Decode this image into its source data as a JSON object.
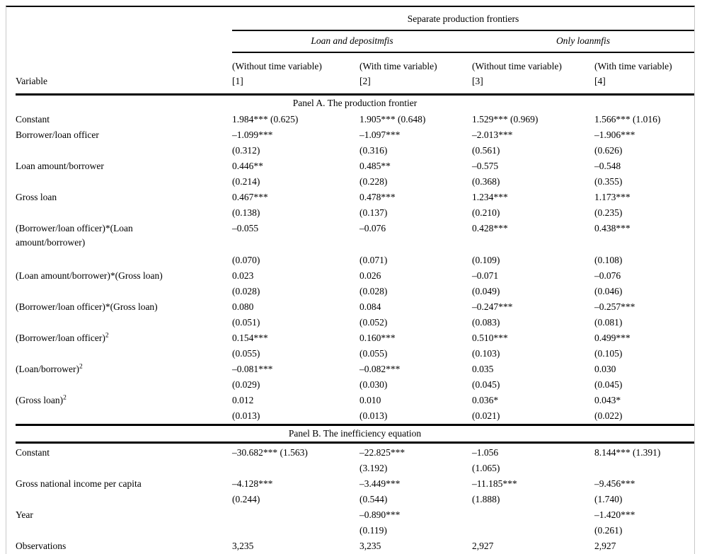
{
  "header": {
    "span_title": "Separate production frontiers",
    "groups": [
      {
        "label": "Loan and depositmfis"
      },
      {
        "label": "Only loanmfis"
      }
    ],
    "variable_col": "Variable",
    "columns": [
      {
        "line1": "(Without time variable)",
        "line2": "[1]"
      },
      {
        "line1": "(With time variable)",
        "line2": "[2]"
      },
      {
        "line1": "(Without time variable)",
        "line2": "[3]"
      },
      {
        "line1": "(With time variable)",
        "line2": "[4]"
      }
    ]
  },
  "panel_a": {
    "title": "Panel A. The production frontier",
    "rows": [
      {
        "label": "Constant",
        "sup": "",
        "wrap": false,
        "cells": [
          "1.984*** (0.625)",
          "1.905*** (0.648)",
          "1.529*** (0.969)",
          "1.566*** (1.016)"
        ]
      },
      {
        "label": "Borrower/loan officer",
        "sup": "",
        "wrap": false,
        "cells": [
          "–1.099***",
          "–1.097***",
          "–2.013***",
          "–1.906***"
        ]
      },
      {
        "label": "",
        "sup": "",
        "wrap": false,
        "cells": [
          "(0.312)",
          "(0.316)",
          "(0.561)",
          "(0.626)"
        ]
      },
      {
        "label": "Loan amount/borrower",
        "sup": "",
        "wrap": false,
        "cells": [
          "0.446**",
          "0.485**",
          "–0.575",
          "–0.548"
        ]
      },
      {
        "label": "",
        "sup": "",
        "wrap": false,
        "cells": [
          "(0.214)",
          "(0.228)",
          "(0.368)",
          "(0.355)"
        ]
      },
      {
        "label": "Gross loan",
        "sup": "",
        "wrap": false,
        "cells": [
          "0.467***",
          "0.478***",
          "1.234***",
          "1.173***"
        ]
      },
      {
        "label": "",
        "sup": "",
        "wrap": false,
        "cells": [
          "(0.138)",
          "(0.137)",
          "(0.210)",
          "(0.235)"
        ]
      },
      {
        "label": "(Borrower/loan officer)*(Loan amount/borrower)",
        "sup": "",
        "wrap": true,
        "cells": [
          "–0.055",
          "–0.076",
          "0.428***",
          "0.438***"
        ]
      },
      {
        "label": "",
        "sup": "",
        "wrap": false,
        "cells": [
          "(0.070)",
          "(0.071)",
          "(0.109)",
          "(0.108)"
        ]
      },
      {
        "label": "(Loan amount/borrower)*(Gross loan)",
        "sup": "",
        "wrap": false,
        "cells": [
          "0.023",
          "0.026",
          "–0.071",
          "–0.076"
        ]
      },
      {
        "label": "",
        "sup": "",
        "wrap": false,
        "cells": [
          "(0.028)",
          "(0.028)",
          "(0.049)",
          "(0.046)"
        ]
      },
      {
        "label": "(Borrower/loan officer)*(Gross loan)",
        "sup": "",
        "wrap": false,
        "cells": [
          "0.080",
          "0.084",
          "–0.247***",
          "–0.257***"
        ]
      },
      {
        "label": "",
        "sup": "",
        "wrap": false,
        "cells": [
          "(0.051)",
          "(0.052)",
          "(0.083)",
          "(0.081)"
        ]
      },
      {
        "label": "(Borrower/loan officer)",
        "sup": "2",
        "wrap": false,
        "cells": [
          "0.154***",
          "0.160***",
          "0.510***",
          "0.499***"
        ]
      },
      {
        "label": "",
        "sup": "",
        "wrap": false,
        "cells": [
          "(0.055)",
          "(0.055)",
          "(0.103)",
          "(0.105)"
        ]
      },
      {
        "label": "(Loan/borrower)",
        "sup": "2",
        "wrap": false,
        "cells": [
          "–0.081***",
          "–0.082***",
          "0.035",
          "0.030"
        ]
      },
      {
        "label": "",
        "sup": "",
        "wrap": false,
        "cells": [
          "(0.029)",
          "(0.030)",
          "(0.045)",
          "(0.045)"
        ]
      },
      {
        "label": "(Gross loan)",
        "sup": "2",
        "wrap": false,
        "cells": [
          "0.012",
          "0.010",
          "0.036*",
          "0.043*"
        ]
      },
      {
        "label": "",
        "sup": "",
        "wrap": false,
        "cells": [
          "(0.013)",
          "(0.013)",
          "(0.021)",
          "(0.022)"
        ]
      }
    ]
  },
  "panel_b": {
    "title": "Panel B. The inefficiency equation",
    "rows": [
      {
        "label": "Constant",
        "sup": "",
        "wrap": false,
        "cells": [
          "–30.682*** (1.563)",
          "–22.825***",
          "–1.056",
          "8.144*** (1.391)"
        ]
      },
      {
        "label": "",
        "sup": "",
        "wrap": false,
        "cells": [
          "",
          "(3.192)",
          "(1.065)",
          ""
        ]
      },
      {
        "label": "Gross national income per capita",
        "sup": "",
        "wrap": false,
        "cells": [
          "–4.128***",
          "–3.449***",
          "–11.185***",
          "–9.456***"
        ]
      },
      {
        "label": "",
        "sup": "",
        "wrap": false,
        "cells": [
          "(0.244)",
          "(0.544)",
          "(1.888)",
          "(1.740)"
        ]
      },
      {
        "label": "Year",
        "sup": "",
        "wrap": false,
        "cells": [
          "",
          "–0.890***",
          "",
          "–1.420***"
        ]
      },
      {
        "label": "",
        "sup": "",
        "wrap": false,
        "cells": [
          "",
          "(0.119)",
          "",
          "(0.261)"
        ]
      },
      {
        "label": "Observations",
        "sup": "",
        "wrap": false,
        "cells": [
          "3,235",
          "3,235",
          "2,927",
          "2,927"
        ]
      }
    ]
  }
}
